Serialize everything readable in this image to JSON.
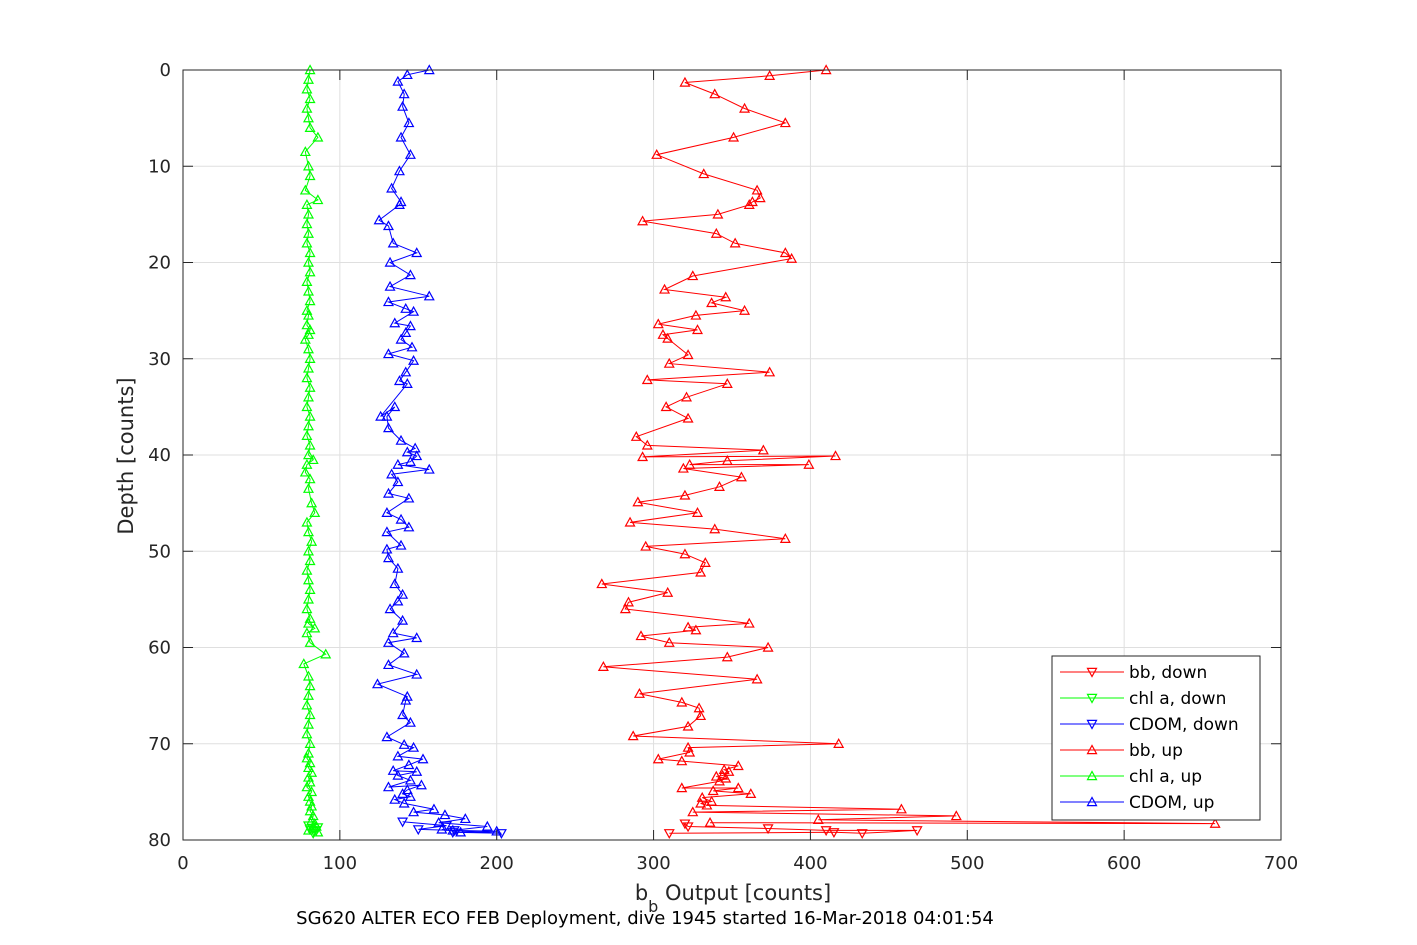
{
  "chart_data": {
    "type": "line",
    "xlabel_main": "b",
    "xlabel_sub": "b",
    "xlabel_rest": " Output [counts]",
    "ylabel": "Depth [counts]",
    "caption": "SG620 ALTER ECO FEB Deployment, dive 1945 started 16-Mar-2018 04:01:54",
    "xlim": [
      0,
      700
    ],
    "ylim": [
      0,
      80
    ],
    "y_reversed": true,
    "grid": true,
    "legend_position": "bottom-right",
    "x_ticks": [
      "0",
      "100",
      "200",
      "300",
      "400",
      "500",
      "600",
      "700"
    ],
    "y_ticks": [
      "0",
      "10",
      "20",
      "30",
      "40",
      "50",
      "60",
      "70",
      "80"
    ],
    "series": [
      {
        "name": "bb, down",
        "color": "#ff0000",
        "marker": "triangle-down",
        "points": [
          [
            310,
            79.3
          ],
          [
            415,
            79.2
          ],
          [
            433,
            79.3
          ],
          [
            468,
            79.0
          ],
          [
            410,
            79.0
          ],
          [
            373,
            78.8
          ],
          [
            322,
            78.6
          ],
          [
            320,
            78.3
          ]
        ]
      },
      {
        "name": "chl a, down",
        "color": "#00ff00",
        "marker": "triangle-down",
        "points": [
          [
            83,
            79.3
          ],
          [
            85,
            79.0
          ],
          [
            81,
            78.9
          ],
          [
            86,
            78.7
          ],
          [
            80,
            78.5
          ]
        ]
      },
      {
        "name": "CDOM, down",
        "color": "#0000ff",
        "marker": "triangle-down",
        "points": [
          [
            172,
            79.2
          ],
          [
            203,
            79.3
          ],
          [
            173,
            79.0
          ],
          [
            150,
            78.9
          ],
          [
            168,
            78.5
          ],
          [
            140,
            78.1
          ]
        ]
      },
      {
        "name": "bb, up",
        "color": "#ff0000",
        "marker": "triangle-up",
        "points": [
          [
            410,
            0
          ],
          [
            374,
            0.6
          ],
          [
            320,
            1.3
          ],
          [
            339,
            2.5
          ],
          [
            358,
            4.0
          ],
          [
            384,
            5.5
          ],
          [
            351,
            7.0
          ],
          [
            302,
            8.8
          ],
          [
            332,
            10.8
          ],
          [
            366,
            12.5
          ],
          [
            368,
            13.3
          ],
          [
            363,
            13.7
          ],
          [
            361,
            14.0
          ],
          [
            341,
            15.0
          ],
          [
            293,
            15.7
          ],
          [
            340,
            17.0
          ],
          [
            352,
            18.0
          ],
          [
            384,
            19.0
          ],
          [
            388,
            19.6
          ],
          [
            325,
            21.4
          ],
          [
            307,
            22.8
          ],
          [
            346,
            23.6
          ],
          [
            337,
            24.2
          ],
          [
            358,
            25.0
          ],
          [
            327,
            25.5
          ],
          [
            303,
            26.4
          ],
          [
            328,
            27.0
          ],
          [
            306,
            27.5
          ],
          [
            309,
            27.9
          ],
          [
            322,
            29.6
          ],
          [
            310,
            30.5
          ],
          [
            374,
            31.4
          ],
          [
            296,
            32.2
          ],
          [
            347,
            32.6
          ],
          [
            321,
            34.0
          ],
          [
            308,
            35.0
          ],
          [
            322,
            36.2
          ],
          [
            289,
            38.1
          ],
          [
            296,
            39.0
          ],
          [
            370,
            39.5
          ],
          [
            293,
            40.2
          ],
          [
            416,
            40.1
          ],
          [
            347,
            40.6
          ],
          [
            323,
            41.0
          ],
          [
            399,
            41.0
          ],
          [
            319,
            41.4
          ],
          [
            356,
            42.3
          ],
          [
            342,
            43.3
          ],
          [
            320,
            44.2
          ],
          [
            290,
            44.9
          ],
          [
            328,
            46.0
          ],
          [
            285,
            47.0
          ],
          [
            339,
            47.7
          ],
          [
            384,
            48.7
          ],
          [
            295,
            49.5
          ],
          [
            320,
            50.3
          ],
          [
            333,
            51.2
          ],
          [
            330,
            52.2
          ],
          [
            267,
            53.4
          ],
          [
            309,
            54.3
          ],
          [
            284,
            55.3
          ],
          [
            282,
            56.0
          ],
          [
            361,
            57.5
          ],
          [
            322,
            57.9
          ],
          [
            327,
            58.2
          ],
          [
            292,
            58.8
          ],
          [
            310,
            59.5
          ],
          [
            373,
            60.0
          ],
          [
            347,
            61.0
          ],
          [
            268,
            62.0
          ],
          [
            366,
            63.3
          ],
          [
            291,
            64.8
          ],
          [
            318,
            65.7
          ],
          [
            329,
            66.3
          ],
          [
            330,
            67.1
          ],
          [
            322,
            68.2
          ],
          [
            287,
            69.2
          ],
          [
            418,
            70.0
          ],
          [
            322,
            70.4
          ],
          [
            323,
            70.9
          ],
          [
            303,
            71.6
          ],
          [
            318,
            71.8
          ],
          [
            354,
            72.3
          ],
          [
            345,
            72.7
          ],
          [
            348,
            72.9
          ],
          [
            344,
            73.3
          ],
          [
            340,
            73.4
          ],
          [
            346,
            73.6
          ],
          [
            342,
            73.9
          ],
          [
            318,
            74.6
          ],
          [
            354,
            74.6
          ],
          [
            338,
            74.9
          ],
          [
            362,
            75.2
          ],
          [
            331,
            75.6
          ],
          [
            337,
            76.0
          ],
          [
            330,
            76.2
          ],
          [
            334,
            76.4
          ],
          [
            458,
            76.8
          ],
          [
            325,
            77.1
          ],
          [
            493,
            77.5
          ],
          [
            405,
            77.9
          ],
          [
            658,
            78.3
          ],
          [
            336,
            78.2
          ]
        ]
      },
      {
        "name": "chl a, up",
        "color": "#00ff00",
        "marker": "triangle-up",
        "points": [
          [
            81,
            0
          ],
          [
            80,
            1.0
          ],
          [
            79,
            2.0
          ],
          [
            81,
            3.0
          ],
          [
            79,
            4.0
          ],
          [
            80,
            5.0
          ],
          [
            81,
            6.0
          ],
          [
            86,
            7.0
          ],
          [
            78,
            8.5
          ],
          [
            80,
            10.0
          ],
          [
            81,
            11.0
          ],
          [
            78,
            12.5
          ],
          [
            86,
            13.5
          ],
          [
            79,
            14.0
          ],
          [
            80,
            15.0
          ],
          [
            79,
            16.0
          ],
          [
            80,
            17.0
          ],
          [
            79,
            18.0
          ],
          [
            81,
            19.0
          ],
          [
            80,
            20.0
          ],
          [
            81,
            21.0
          ],
          [
            79,
            22.0
          ],
          [
            80,
            23.0
          ],
          [
            81,
            24.0
          ],
          [
            79,
            25.0
          ],
          [
            80,
            25.5
          ],
          [
            79,
            26.5
          ],
          [
            81,
            27.0
          ],
          [
            80,
            27.5
          ],
          [
            78,
            28.0
          ],
          [
            80,
            29.0
          ],
          [
            81,
            30.0
          ],
          [
            80,
            31.0
          ],
          [
            79,
            32.0
          ],
          [
            81,
            33.0
          ],
          [
            80,
            34.0
          ],
          [
            79,
            35.0
          ],
          [
            81,
            36.0
          ],
          [
            80,
            37.0
          ],
          [
            79,
            38.0
          ],
          [
            81,
            39.0
          ],
          [
            80,
            40.0
          ],
          [
            83,
            40.5
          ],
          [
            79,
            41.0
          ],
          [
            78,
            41.8
          ],
          [
            81,
            42.5
          ],
          [
            80,
            43.5
          ],
          [
            82,
            45.0
          ],
          [
            84,
            46.0
          ],
          [
            79,
            47.0
          ],
          [
            80,
            48.0
          ],
          [
            82,
            49.0
          ],
          [
            80,
            50.0
          ],
          [
            81,
            51.0
          ],
          [
            79,
            52.0
          ],
          [
            80,
            53.0
          ],
          [
            81,
            54.0
          ],
          [
            80,
            55.0
          ],
          [
            79,
            56.0
          ],
          [
            81,
            57.0
          ],
          [
            80,
            57.5
          ],
          [
            84,
            58.0
          ],
          [
            79,
            58.5
          ],
          [
            81,
            59.5
          ],
          [
            91,
            60.7
          ],
          [
            77,
            61.7
          ],
          [
            80,
            63.0
          ],
          [
            81,
            64.0
          ],
          [
            80,
            65.0
          ],
          [
            79,
            66.0
          ],
          [
            81,
            67.0
          ],
          [
            80,
            68.0
          ],
          [
            79,
            69.0
          ],
          [
            81,
            70.0
          ],
          [
            80,
            71.0
          ],
          [
            79,
            71.5
          ],
          [
            81,
            72.0
          ],
          [
            80,
            72.5
          ],
          [
            82,
            73.0
          ],
          [
            80,
            73.5
          ],
          [
            81,
            74.0
          ],
          [
            79,
            74.5
          ],
          [
            82,
            75.0
          ],
          [
            80,
            75.5
          ],
          [
            81,
            76.0
          ],
          [
            82,
            76.5
          ],
          [
            81,
            77.0
          ],
          [
            83,
            77.5
          ],
          [
            82,
            78.0
          ],
          [
            84,
            78.3
          ],
          [
            85,
            78.6
          ],
          [
            80,
            79.0
          ],
          [
            86,
            79.2
          ],
          [
            83,
            78.8
          ]
        ]
      },
      {
        "name": "CDOM, up",
        "color": "#0000ff",
        "marker": "triangle-up",
        "points": [
          [
            157,
            0
          ],
          [
            143,
            0.5
          ],
          [
            137,
            1.2
          ],
          [
            141,
            2.5
          ],
          [
            140,
            3.8
          ],
          [
            144,
            5.5
          ],
          [
            139,
            7.0
          ],
          [
            145,
            8.8
          ],
          [
            138,
            10.5
          ],
          [
            133,
            12.3
          ],
          [
            139,
            13.7
          ],
          [
            138,
            14.0
          ],
          [
            125,
            15.6
          ],
          [
            131,
            16.2
          ],
          [
            134,
            18.0
          ],
          [
            149,
            19.0
          ],
          [
            132,
            20.0
          ],
          [
            145,
            21.3
          ],
          [
            132,
            22.5
          ],
          [
            157,
            23.5
          ],
          [
            131,
            24.1
          ],
          [
            142,
            24.8
          ],
          [
            147,
            25.1
          ],
          [
            135,
            26.3
          ],
          [
            145,
            26.6
          ],
          [
            142,
            27.3
          ],
          [
            139,
            28.0
          ],
          [
            146,
            28.8
          ],
          [
            131,
            29.5
          ],
          [
            147,
            30.2
          ],
          [
            142,
            31.4
          ],
          [
            138,
            32.3
          ],
          [
            143,
            32.6
          ],
          [
            126,
            36.0
          ],
          [
            135,
            35.0
          ],
          [
            130,
            36.0
          ],
          [
            131,
            37.2
          ],
          [
            139,
            38.5
          ],
          [
            148,
            39.3
          ],
          [
            143,
            39.7
          ],
          [
            149,
            40.1
          ],
          [
            145,
            40.7
          ],
          [
            137,
            41.0
          ],
          [
            157,
            41.5
          ],
          [
            133,
            42.0
          ],
          [
            137,
            42.8
          ],
          [
            131,
            44.0
          ],
          [
            144,
            44.5
          ],
          [
            130,
            46.0
          ],
          [
            139,
            46.7
          ],
          [
            144,
            47.5
          ],
          [
            130,
            48.0
          ],
          [
            139,
            49.4
          ],
          [
            130,
            49.8
          ],
          [
            131,
            50.7
          ],
          [
            137,
            51.8
          ],
          [
            135,
            53.4
          ],
          [
            140,
            54.5
          ],
          [
            137,
            55.2
          ],
          [
            132,
            56.0
          ],
          [
            140,
            57.2
          ],
          [
            134,
            58.5
          ],
          [
            149,
            59.0
          ],
          [
            131,
            59.5
          ],
          [
            141,
            60.6
          ],
          [
            131,
            61.8
          ],
          [
            149,
            62.8
          ],
          [
            124,
            63.8
          ],
          [
            143,
            65.1
          ],
          [
            142,
            65.5
          ],
          [
            140,
            67.0
          ],
          [
            145,
            67.8
          ],
          [
            130,
            69.3
          ],
          [
            141,
            70.1
          ],
          [
            147,
            70.4
          ],
          [
            137,
            71.3
          ],
          [
            153,
            71.6
          ],
          [
            144,
            72.2
          ],
          [
            134,
            72.8
          ],
          [
            149,
            72.9
          ],
          [
            137,
            73.3
          ],
          [
            145,
            73.8
          ],
          [
            131,
            74.5
          ],
          [
            152,
            74.3
          ],
          [
            143,
            74.8
          ],
          [
            140,
            75.2
          ],
          [
            145,
            75.5
          ],
          [
            135,
            75.8
          ],
          [
            141,
            76.2
          ],
          [
            160,
            76.8
          ],
          [
            147,
            77.1
          ],
          [
            167,
            77.4
          ],
          [
            180,
            77.8
          ],
          [
            163,
            78.2
          ],
          [
            194,
            78.6
          ],
          [
            172,
            79.0
          ],
          [
            200,
            79.1
          ],
          [
            177,
            79.2
          ],
          [
            165,
            78.9
          ]
        ]
      }
    ]
  }
}
